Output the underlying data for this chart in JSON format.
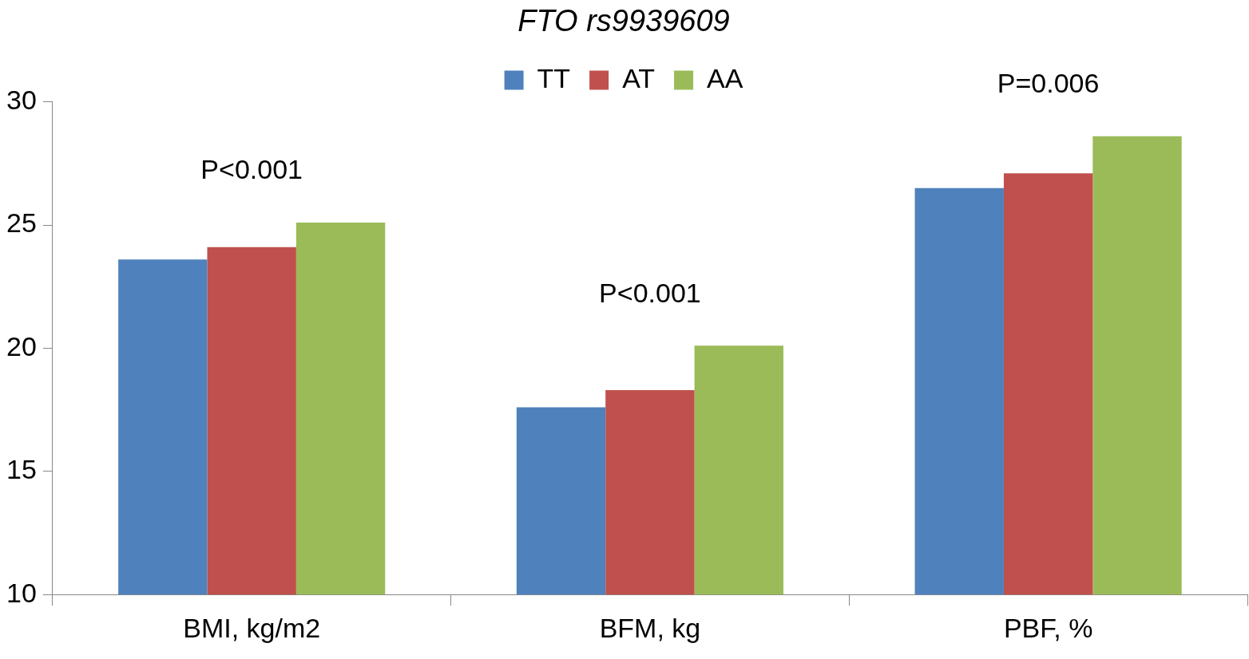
{
  "chart_data": {
    "type": "bar",
    "title": "FTO rs9939609",
    "categories": [
      "BMI, kg/m2",
      "BFM, kg",
      "PBF, %"
    ],
    "series": [
      {
        "name": "TT",
        "color": "#4f81bd",
        "values": [
          23.6,
          17.6,
          26.5
        ]
      },
      {
        "name": "AT",
        "color": "#c0504d",
        "values": [
          24.1,
          18.3,
          27.1
        ]
      },
      {
        "name": "AA",
        "color": "#9bbb59",
        "values": [
          25.1,
          20.1,
          28.6
        ]
      }
    ],
    "ylim": [
      10,
      30
    ],
    "yticks": [
      10,
      15,
      20,
      25,
      30
    ],
    "grid": false,
    "legend": "top",
    "annotations": [
      "P<0.001",
      "P<0.001",
      "P=0.006"
    ]
  }
}
